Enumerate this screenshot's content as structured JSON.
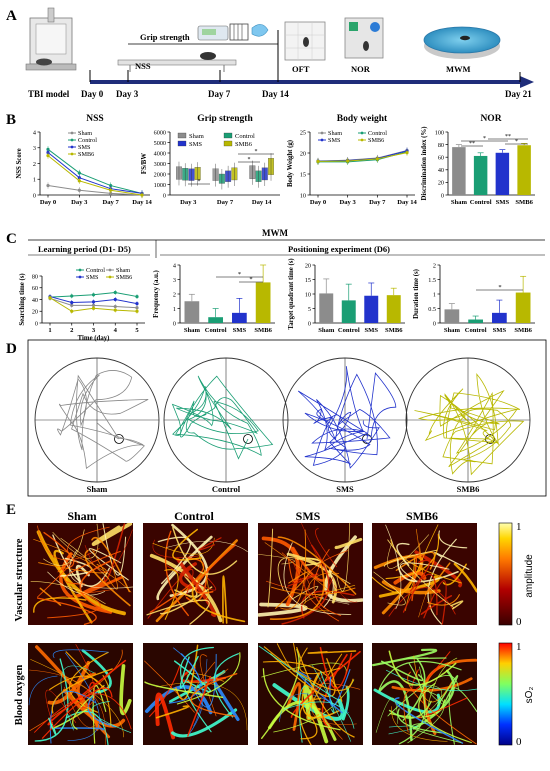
{
  "panels": {
    "A": "A",
    "B": "B",
    "C": "C",
    "D": "D",
    "E": "E"
  },
  "timeline": {
    "days": [
      "Day 0",
      "Day 3",
      "Day 7",
      "Day 14",
      "Day 21"
    ],
    "start_label": "TBI model",
    "tests": [
      "NSS",
      "Grip strength",
      "OFT",
      "NOR",
      "MWM"
    ],
    "accent_color": "#1f2d7a"
  },
  "groups": [
    "Sham",
    "Control",
    "SMS",
    "SMB6"
  ],
  "group_colors": {
    "Sham": "#8c8c8c",
    "Control": "#1a9e74",
    "SMS": "#2233cc",
    "SMB6": "#b8b800"
  },
  "mwm": {
    "title": "MWM",
    "learning_title": "Learning period (D1- D5)",
    "positioning_title": "Positioning experiment (D6)",
    "track_labels": [
      "Sham",
      "Control",
      "SMS",
      "SMB6"
    ]
  },
  "colorbars": {
    "amplitude": {
      "label": "amplitude",
      "max": "1",
      "min": "0"
    },
    "so2": {
      "label": "sO₂",
      "max": "1",
      "min": "0"
    }
  },
  "row_labels": [
    "Vascular structure",
    "Blood oxygen"
  ],
  "chart_data": [
    {
      "id": "nss",
      "type": "line",
      "title": "NSS",
      "ylabel": "NSS Score",
      "x": [
        "Day 0",
        "Day 3",
        "Day 7",
        "Day 14"
      ],
      "ylim": [
        0,
        4
      ],
      "yticks": [
        0,
        1,
        2,
        3,
        4
      ],
      "series": [
        {
          "name": "Sham",
          "values": [
            0.6,
            0.3,
            0.1,
            0.0
          ]
        },
        {
          "name": "Control",
          "values": [
            2.9,
            1.4,
            0.6,
            0.1
          ]
        },
        {
          "name": "SMS",
          "values": [
            2.7,
            1.1,
            0.4,
            0.1
          ]
        },
        {
          "name": "SMB6",
          "values": [
            2.5,
            0.9,
            0.3,
            0.0
          ]
        }
      ]
    },
    {
      "id": "grip",
      "type": "bar",
      "title": "Grip strength",
      "ylabel": "FS/BW",
      "categories": [
        "Day 3",
        "Day 7",
        "Day 14"
      ],
      "ylim": [
        0,
        6000
      ],
      "yticks": [
        0,
        1000,
        2000,
        3000,
        4000,
        5000,
        6000
      ],
      "series": [
        {
          "name": "Sham",
          "values": [
            2700,
            2500,
            2800
          ]
        },
        {
          "name": "Control",
          "values": [
            2550,
            2000,
            2300
          ]
        },
        {
          "name": "SMS",
          "values": [
            2500,
            2300,
            2600
          ]
        },
        {
          "name": "SMB6",
          "values": [
            2650,
            2600,
            3500
          ]
        }
      ]
    },
    {
      "id": "bw",
      "type": "line",
      "title": "Body weight",
      "ylabel": "Body Weight (g)",
      "x": [
        "Day 0",
        "Day 3",
        "Day 7",
        "Day 14"
      ],
      "ylim": [
        10,
        25
      ],
      "yticks": [
        10,
        15,
        20,
        25
      ],
      "series": [
        {
          "name": "Sham",
          "values": [
            18.0,
            18.3,
            18.8,
            20.6
          ]
        },
        {
          "name": "Control",
          "values": [
            17.9,
            17.9,
            18.4,
            20.3
          ]
        },
        {
          "name": "SMS",
          "values": [
            18.1,
            18.2,
            18.7,
            20.5
          ]
        },
        {
          "name": "SMB6",
          "values": [
            18.0,
            18.1,
            18.6,
            20.1
          ]
        }
      ]
    },
    {
      "id": "nor",
      "type": "bar",
      "title": "NOR",
      "ylabel": "Discrimination index (%)",
      "categories": [
        "Sham",
        "Control",
        "SMS",
        "SMB6"
      ],
      "ylim": [
        0,
        100
      ],
      "yticks": [
        0,
        20,
        40,
        60,
        80,
        100
      ],
      "values": [
        76,
        62,
        67,
        79
      ]
    },
    {
      "id": "learn",
      "type": "line",
      "ylabel": "Searching time (s)",
      "xlabel": "Time (day)",
      "x": [
        1,
        2,
        3,
        4,
        5
      ],
      "ylim": [
        0,
        80
      ],
      "yticks": [
        0,
        20,
        40,
        60,
        80
      ],
      "series": [
        {
          "name": "Control",
          "values": [
            44,
            46,
            48,
            52,
            45
          ]
        },
        {
          "name": "Sham",
          "values": [
            42,
            30,
            30,
            28,
            26
          ]
        },
        {
          "name": "SMS",
          "values": [
            45,
            35,
            36,
            40,
            33
          ]
        },
        {
          "name": "SMB6",
          "values": [
            43,
            20,
            25,
            22,
            20
          ]
        }
      ]
    },
    {
      "id": "freq",
      "type": "bar",
      "ylabel": "Frequency (a.u.)",
      "categories": [
        "Sham",
        "Control",
        "SMS",
        "SMB6"
      ],
      "ylim": [
        0,
        4
      ],
      "yticks": [
        0,
        1,
        2,
        3,
        4
      ],
      "values": [
        1.5,
        0.4,
        0.7,
        2.8
      ]
    },
    {
      "id": "quad",
      "type": "bar",
      "ylabel": "Target quadrant time (s)",
      "categories": [
        "Sham",
        "Control",
        "SMS",
        "SMB6"
      ],
      "ylim": [
        0,
        20
      ],
      "yticks": [
        0,
        5,
        10,
        15,
        20
      ],
      "values": [
        10.2,
        7.8,
        9.4,
        9.6
      ]
    },
    {
      "id": "dur",
      "type": "bar",
      "ylabel": "Duration time (s)",
      "categories": [
        "Sham",
        "Control",
        "SMS",
        "SMB6"
      ],
      "ylim": [
        0,
        2.0
      ],
      "yticks": [
        0,
        0.5,
        1.0,
        1.5,
        2.0
      ],
      "values": [
        0.47,
        0.12,
        0.35,
        1.05
      ]
    }
  ]
}
